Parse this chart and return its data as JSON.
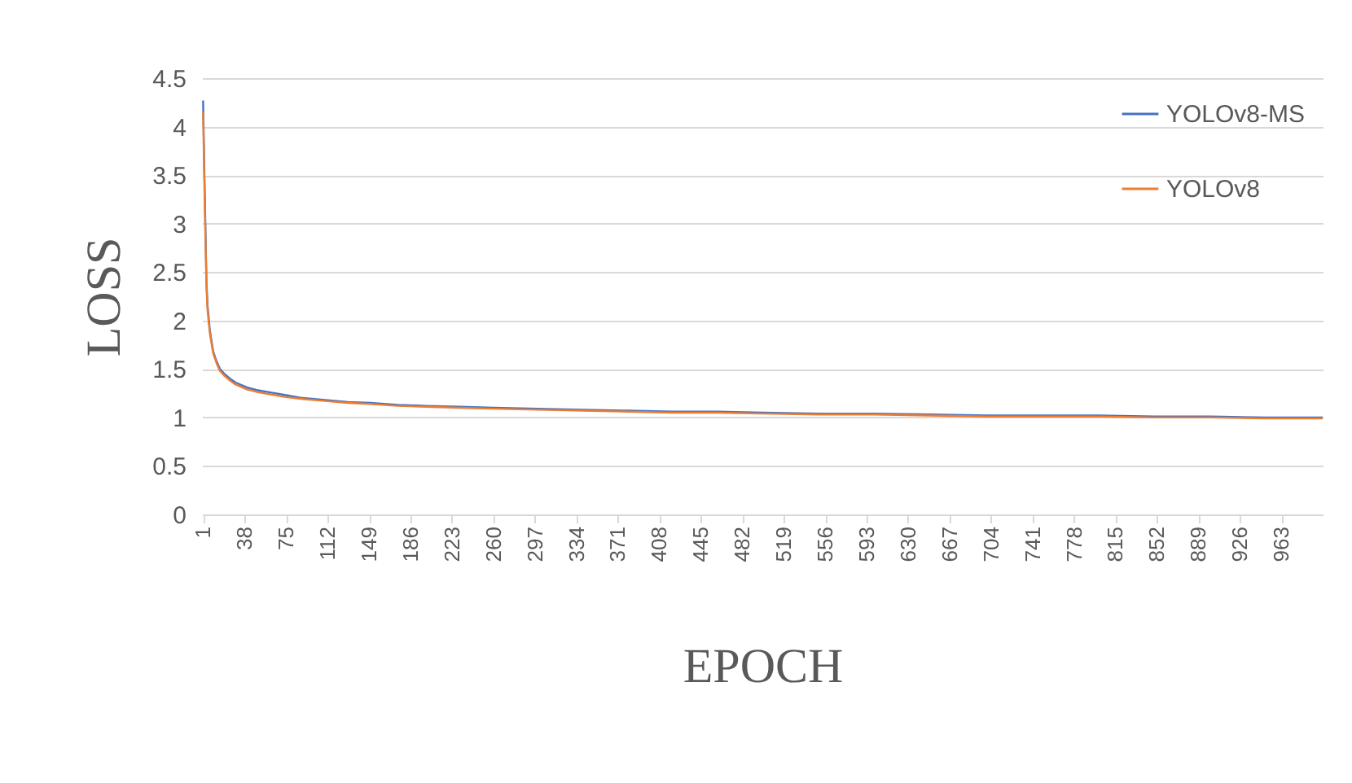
{
  "chart_data": {
    "type": "line",
    "xlabel": "EPOCH",
    "ylabel": "LOSS",
    "x": [
      1,
      2,
      3,
      4,
      5,
      7,
      10,
      13,
      16,
      20,
      25,
      30,
      40,
      50,
      60,
      75,
      90,
      110,
      130,
      150,
      175,
      200,
      230,
      260,
      300,
      340,
      380,
      420,
      460,
      500,
      550,
      600,
      650,
      700,
      750,
      800,
      850,
      900,
      950,
      1000
    ],
    "series": [
      {
        "name": "YOLOv8-MS",
        "color": "#4472c4",
        "values": [
          4.27,
          3.6,
          3.0,
          2.4,
          2.15,
          1.9,
          1.68,
          1.58,
          1.5,
          1.45,
          1.4,
          1.36,
          1.31,
          1.28,
          1.26,
          1.23,
          1.2,
          1.18,
          1.16,
          1.15,
          1.13,
          1.12,
          1.11,
          1.1,
          1.09,
          1.08,
          1.07,
          1.06,
          1.06,
          1.05,
          1.04,
          1.04,
          1.03,
          1.02,
          1.02,
          1.02,
          1.01,
          1.01,
          1.0,
          1.0
        ]
      },
      {
        "name": "YOLOv8",
        "color": "#ed7d31",
        "values": [
          4.15,
          3.5,
          2.9,
          2.35,
          2.1,
          1.87,
          1.66,
          1.56,
          1.48,
          1.43,
          1.38,
          1.34,
          1.29,
          1.26,
          1.24,
          1.21,
          1.19,
          1.17,
          1.15,
          1.14,
          1.12,
          1.11,
          1.1,
          1.09,
          1.08,
          1.07,
          1.06,
          1.05,
          1.05,
          1.04,
          1.03,
          1.03,
          1.02,
          1.01,
          1.01,
          1.01,
          1.0,
          1.0,
          0.99,
          0.99
        ]
      }
    ],
    "xlim": [
      0,
      1000
    ],
    "xticks": [
      1,
      38,
      75,
      112,
      149,
      186,
      223,
      260,
      297,
      334,
      371,
      408,
      445,
      482,
      519,
      556,
      593,
      630,
      667,
      704,
      741,
      778,
      815,
      852,
      889,
      926,
      963
    ],
    "ylim": [
      0,
      4.5
    ],
    "yticks": [
      0,
      0.5,
      1,
      1.5,
      2,
      2.5,
      3,
      3.5,
      4,
      4.5
    ],
    "grid": "y",
    "legend": "top right"
  }
}
